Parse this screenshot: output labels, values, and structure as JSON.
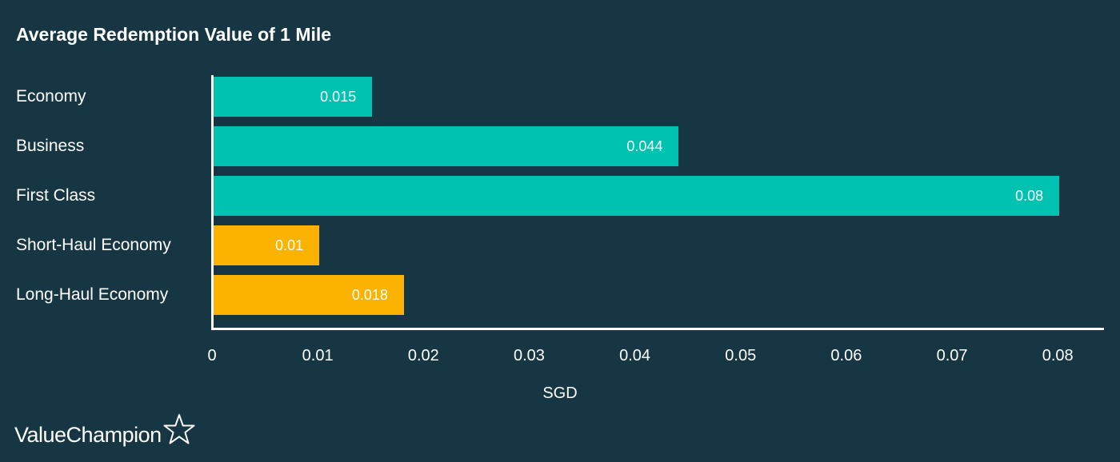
{
  "brand": {
    "name": "ValueChampion"
  },
  "colors": {
    "background": "#173643",
    "teal": "#00c2b0",
    "amber": "#fbb300"
  },
  "chart_data": {
    "type": "bar",
    "orientation": "horizontal",
    "title": "Average Redemption Value of 1 Mile",
    "xlabel": "SGD",
    "ylabel": "",
    "xlim": [
      0,
      0.084
    ],
    "grid": false,
    "legend": "none",
    "x_ticks": [
      "0",
      "0.01",
      "0.02",
      "0.03",
      "0.04",
      "0.05",
      "0.06",
      "0.07",
      "0.08"
    ],
    "categories": [
      "Economy",
      "Business",
      "First Class",
      "Short-Haul Economy",
      "Long-Haul Economy"
    ],
    "values": [
      0.015,
      0.044,
      0.08,
      0.01,
      0.018
    ],
    "value_labels": [
      "0.015",
      "0.044",
      "0.08",
      "0.01",
      "0.018"
    ],
    "bar_colors": [
      "#00c2b0",
      "#00c2b0",
      "#00c2b0",
      "#fbb300",
      "#fbb300"
    ]
  }
}
